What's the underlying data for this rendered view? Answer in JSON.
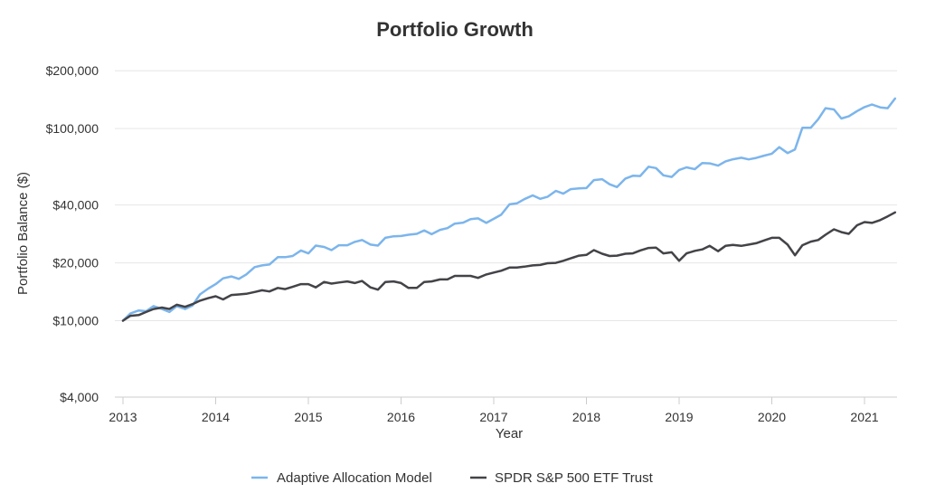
{
  "chart_data": {
    "type": "line",
    "title": "Portfolio Growth",
    "xlabel": "Year",
    "ylabel": "Portfolio Balance ($)",
    "y_scale": "log",
    "ylim": [
      4000,
      260000
    ],
    "y_ticks": [
      {
        "value": 4000,
        "label": "$4,000"
      },
      {
        "value": 10000,
        "label": "$10,000"
      },
      {
        "value": 20000,
        "label": "$20,000"
      },
      {
        "value": 40000,
        "label": "$40,000"
      },
      {
        "value": 100000,
        "label": "$100,000"
      },
      {
        "value": 200000,
        "label": "$200,000"
      }
    ],
    "xlim": [
      2013.0,
      2021.42
    ],
    "x_ticks": [
      {
        "value": 2013,
        "label": "2013"
      },
      {
        "value": 2014,
        "label": "2014"
      },
      {
        "value": 2015,
        "label": "2015"
      },
      {
        "value": 2016,
        "label": "2016"
      },
      {
        "value": 2017,
        "label": "2017"
      },
      {
        "value": 2018,
        "label": "2018"
      },
      {
        "value": 2019,
        "label": "2019"
      },
      {
        "value": 2020,
        "label": "2020"
      },
      {
        "value": 2021,
        "label": "2021"
      }
    ],
    "grid": true,
    "legend_position": "bottom",
    "series": [
      {
        "name": "Adaptive Allocation Model",
        "color": "#7cb5ec",
        "points": [
          [
            2013.0,
            10000
          ],
          [
            2013.08,
            10900
          ],
          [
            2013.17,
            11300
          ],
          [
            2013.25,
            11200
          ],
          [
            2013.33,
            11900
          ],
          [
            2013.42,
            11500
          ],
          [
            2013.5,
            11100
          ],
          [
            2013.58,
            11900
          ],
          [
            2013.67,
            11500
          ],
          [
            2013.75,
            12000
          ],
          [
            2013.83,
            13700
          ],
          [
            2013.92,
            14700
          ],
          [
            2014.0,
            15500
          ],
          [
            2014.08,
            16600
          ],
          [
            2014.17,
            17000
          ],
          [
            2014.25,
            16500
          ],
          [
            2014.33,
            17400
          ],
          [
            2014.42,
            19000
          ],
          [
            2014.5,
            19400
          ],
          [
            2014.58,
            19600
          ],
          [
            2014.67,
            21400
          ],
          [
            2014.75,
            21400
          ],
          [
            2014.83,
            21700
          ],
          [
            2014.92,
            23200
          ],
          [
            2015.0,
            22400
          ],
          [
            2015.08,
            24600
          ],
          [
            2015.17,
            24200
          ],
          [
            2015.25,
            23300
          ],
          [
            2015.33,
            24700
          ],
          [
            2015.42,
            24700
          ],
          [
            2015.5,
            25700
          ],
          [
            2015.58,
            26300
          ],
          [
            2015.67,
            24900
          ],
          [
            2015.75,
            24600
          ],
          [
            2015.83,
            27000
          ],
          [
            2015.92,
            27500
          ],
          [
            2016.0,
            27600
          ],
          [
            2016.08,
            28000
          ],
          [
            2016.17,
            28300
          ],
          [
            2016.25,
            29500
          ],
          [
            2016.33,
            28200
          ],
          [
            2016.42,
            29700
          ],
          [
            2016.5,
            30300
          ],
          [
            2016.58,
            32000
          ],
          [
            2016.67,
            32400
          ],
          [
            2016.75,
            33800
          ],
          [
            2016.83,
            34100
          ],
          [
            2016.92,
            32300
          ],
          [
            2017.0,
            33900
          ],
          [
            2017.08,
            35600
          ],
          [
            2017.17,
            40300
          ],
          [
            2017.25,
            40800
          ],
          [
            2017.33,
            42900
          ],
          [
            2017.42,
            44900
          ],
          [
            2017.5,
            43100
          ],
          [
            2017.58,
            44100
          ],
          [
            2017.67,
            47400
          ],
          [
            2017.75,
            45800
          ],
          [
            2017.83,
            48400
          ],
          [
            2017.92,
            48800
          ],
          [
            2018.0,
            49000
          ],
          [
            2018.08,
            53900
          ],
          [
            2018.17,
            54500
          ],
          [
            2018.25,
            51300
          ],
          [
            2018.33,
            49600
          ],
          [
            2018.42,
            54900
          ],
          [
            2018.5,
            56800
          ],
          [
            2018.58,
            56600
          ],
          [
            2018.67,
            63300
          ],
          [
            2018.75,
            62300
          ],
          [
            2018.83,
            57100
          ],
          [
            2018.92,
            56000
          ],
          [
            2019.0,
            60900
          ],
          [
            2019.08,
            62800
          ],
          [
            2019.17,
            61500
          ],
          [
            2019.25,
            66200
          ],
          [
            2019.33,
            65900
          ],
          [
            2019.42,
            64100
          ],
          [
            2019.5,
            67500
          ],
          [
            2019.58,
            69200
          ],
          [
            2019.67,
            70500
          ],
          [
            2019.75,
            69100
          ],
          [
            2019.83,
            70300
          ],
          [
            2019.92,
            72300
          ],
          [
            2020.0,
            74000
          ],
          [
            2020.08,
            80000
          ],
          [
            2020.17,
            74600
          ],
          [
            2020.25,
            77900
          ],
          [
            2020.33,
            101000
          ],
          [
            2020.42,
            101000
          ],
          [
            2020.5,
            111800
          ],
          [
            2020.58,
            127600
          ],
          [
            2020.67,
            125700
          ],
          [
            2020.75,
            112800
          ],
          [
            2020.83,
            115800
          ],
          [
            2020.92,
            123300
          ],
          [
            2021.0,
            129400
          ],
          [
            2021.08,
            133500
          ],
          [
            2021.17,
            128900
          ],
          [
            2021.25,
            127600
          ],
          [
            2021.33,
            143300
          ]
        ]
      },
      {
        "name": "SPDR S&P 500 ETF Trust",
        "color": "#434348",
        "points": [
          [
            2013.0,
            10000
          ],
          [
            2013.08,
            10600
          ],
          [
            2013.17,
            10700
          ],
          [
            2013.25,
            11100
          ],
          [
            2013.33,
            11500
          ],
          [
            2013.42,
            11700
          ],
          [
            2013.5,
            11500
          ],
          [
            2013.58,
            12100
          ],
          [
            2013.67,
            11800
          ],
          [
            2013.75,
            12200
          ],
          [
            2013.83,
            12700
          ],
          [
            2013.92,
            13100
          ],
          [
            2014.0,
            13400
          ],
          [
            2014.08,
            12900
          ],
          [
            2014.17,
            13600
          ],
          [
            2014.25,
            13700
          ],
          [
            2014.33,
            13800
          ],
          [
            2014.42,
            14100
          ],
          [
            2014.5,
            14400
          ],
          [
            2014.58,
            14200
          ],
          [
            2014.67,
            14800
          ],
          [
            2014.75,
            14600
          ],
          [
            2014.83,
            15000
          ],
          [
            2014.92,
            15500
          ],
          [
            2015.0,
            15500
          ],
          [
            2015.08,
            14900
          ],
          [
            2015.17,
            15900
          ],
          [
            2015.25,
            15600
          ],
          [
            2015.33,
            15800
          ],
          [
            2015.42,
            16000
          ],
          [
            2015.5,
            15700
          ],
          [
            2015.58,
            16100
          ],
          [
            2015.67,
            14900
          ],
          [
            2015.75,
            14500
          ],
          [
            2015.83,
            15900
          ],
          [
            2015.92,
            16000
          ],
          [
            2016.0,
            15700
          ],
          [
            2016.08,
            14800
          ],
          [
            2016.17,
            14800
          ],
          [
            2016.25,
            15900
          ],
          [
            2016.33,
            16000
          ],
          [
            2016.42,
            16400
          ],
          [
            2016.5,
            16400
          ],
          [
            2016.58,
            17100
          ],
          [
            2016.67,
            17100
          ],
          [
            2016.75,
            17100
          ],
          [
            2016.83,
            16700
          ],
          [
            2016.92,
            17400
          ],
          [
            2017.0,
            17800
          ],
          [
            2017.08,
            18200
          ],
          [
            2017.17,
            18900
          ],
          [
            2017.25,
            18900
          ],
          [
            2017.33,
            19100
          ],
          [
            2017.42,
            19400
          ],
          [
            2017.5,
            19500
          ],
          [
            2017.58,
            19900
          ],
          [
            2017.67,
            20000
          ],
          [
            2017.75,
            20500
          ],
          [
            2017.83,
            21100
          ],
          [
            2017.92,
            21800
          ],
          [
            2018.0,
            22000
          ],
          [
            2018.08,
            23300
          ],
          [
            2018.17,
            22300
          ],
          [
            2018.25,
            21700
          ],
          [
            2018.33,
            21800
          ],
          [
            2018.42,
            22300
          ],
          [
            2018.5,
            22400
          ],
          [
            2018.58,
            23200
          ],
          [
            2018.67,
            23900
          ],
          [
            2018.75,
            24000
          ],
          [
            2018.83,
            22400
          ],
          [
            2018.92,
            22700
          ],
          [
            2019.0,
            20500
          ],
          [
            2019.08,
            22400
          ],
          [
            2019.17,
            23100
          ],
          [
            2019.25,
            23500
          ],
          [
            2019.33,
            24500
          ],
          [
            2019.42,
            23000
          ],
          [
            2019.5,
            24500
          ],
          [
            2019.58,
            24800
          ],
          [
            2019.67,
            24500
          ],
          [
            2019.75,
            24900
          ],
          [
            2019.83,
            25300
          ],
          [
            2019.92,
            26200
          ],
          [
            2020.0,
            27000
          ],
          [
            2020.08,
            27000
          ],
          [
            2020.17,
            24900
          ],
          [
            2020.25,
            21900
          ],
          [
            2020.33,
            24700
          ],
          [
            2020.42,
            25800
          ],
          [
            2020.5,
            26300
          ],
          [
            2020.58,
            28000
          ],
          [
            2020.67,
            29900
          ],
          [
            2020.75,
            28900
          ],
          [
            2020.83,
            28300
          ],
          [
            2020.92,
            31400
          ],
          [
            2021.0,
            32600
          ],
          [
            2021.08,
            32300
          ],
          [
            2021.17,
            33400
          ],
          [
            2021.25,
            34900
          ],
          [
            2021.33,
            36600
          ]
        ]
      }
    ]
  }
}
